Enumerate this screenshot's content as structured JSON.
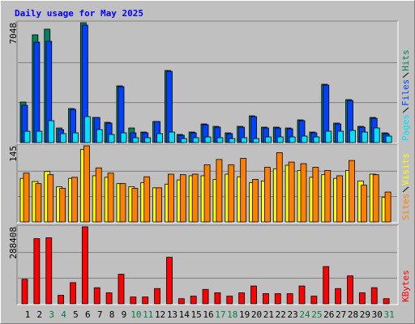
{
  "chart_data": [
    {
      "type": "bar",
      "title": "Daily usage for May 2025",
      "ylim": [
        0,
        7048
      ],
      "yticks": [
        7048
      ],
      "grid_divisions": 3,
      "series": [
        {
          "name": "Hits",
          "color": "#00805c",
          "values": [
            2381,
            6334,
            6667,
            857,
            2000,
            7048,
            1476,
            1190,
            3333,
            857,
            619,
            1238,
            4238,
            476,
            619,
            1095,
            952,
            571,
            952,
            1571,
            905,
            905,
            857,
            1333,
            619,
            3429,
            1143,
            2524,
            952,
            1476,
            571
          ]
        },
        {
          "name": "Files",
          "color": "#0040ff",
          "values": [
            2190,
            5905,
            5953,
            762,
            1952,
            6905,
            1476,
            1143,
            3286,
            571,
            571,
            1238,
            4190,
            429,
            571,
            1048,
            905,
            524,
            905,
            1524,
            857,
            857,
            810,
            1286,
            571,
            3381,
            1095,
            2476,
            905,
            1429,
            524
          ]
        },
        {
          "name": "Pages",
          "color": "#00e0ff",
          "values": [
            667,
            667,
            1286,
            524,
            571,
            1524,
            762,
            476,
            571,
            286,
            286,
            524,
            619,
            238,
            286,
            333,
            286,
            238,
            286,
            238,
            333,
            333,
            333,
            381,
            333,
            667,
            667,
            714,
            619,
            857,
            381
          ]
        }
      ]
    },
    {
      "type": "bar",
      "ylim": [
        0,
        145
      ],
      "yticks": [
        145
      ],
      "grid_divisions": 3,
      "series": [
        {
          "name": "Visits",
          "color": "#ffff00",
          "values": [
            83,
            77,
            96,
            67,
            83,
            138,
            88,
            85,
            73,
            67,
            75,
            65,
            72,
            80,
            88,
            88,
            81,
            91,
            86,
            75,
            78,
            101,
            108,
            98,
            85,
            90,
            83,
            98,
            78,
            91,
            47
          ]
        },
        {
          "name": "Sites",
          "color": "#ff8000",
          "values": [
            93,
            73,
            90,
            64,
            85,
            145,
            103,
            93,
            73,
            64,
            86,
            65,
            91,
            90,
            91,
            109,
            119,
            109,
            121,
            81,
            104,
            132,
            114,
            111,
            104,
            98,
            88,
            117,
            70,
            90,
            57
          ]
        }
      ]
    },
    {
      "type": "bar",
      "ylim": [
        0,
        288408
      ],
      "yticks": [
        288408
      ],
      "grid_divisions": 3,
      "categories": [
        "1",
        "2",
        "3",
        "4",
        "5",
        "6",
        "7",
        "8",
        "9",
        "10",
        "11",
        "12",
        "13",
        "14",
        "15",
        "16",
        "17",
        "18",
        "19",
        "20",
        "21",
        "22",
        "23",
        "24",
        "25",
        "26",
        "27",
        "28",
        "29",
        "30",
        "31"
      ],
      "category_colors": [
        "#000000",
        "#000000",
        "#008040",
        "#008040",
        "#000000",
        "#000000",
        "#000000",
        "#000000",
        "#000000",
        "#008040",
        "#008040",
        "#000000",
        "#000000",
        "#000000",
        "#000000",
        "#000000",
        "#008040",
        "#008040",
        "#000000",
        "#000000",
        "#000000",
        "#000000",
        "#000000",
        "#008040",
        "#008040",
        "#000000",
        "#000000",
        "#000000",
        "#000000",
        "#000000",
        "#008040"
      ],
      "series": [
        {
          "name": "KBytes",
          "color": "#ff0000",
          "values": [
            91910,
            244036,
            247205,
            31693,
            79233,
            288408,
            60217,
            41201,
            110927,
            25354,
            25354,
            57047,
            174311,
            19016,
            28524,
            53878,
            41201,
            28524,
            41201,
            66555,
            38031,
            38031,
            38031,
            66555,
            28524,
            139449,
            57047,
            104586,
            41201,
            60217,
            19016
          ]
        }
      ]
    }
  ]
}
